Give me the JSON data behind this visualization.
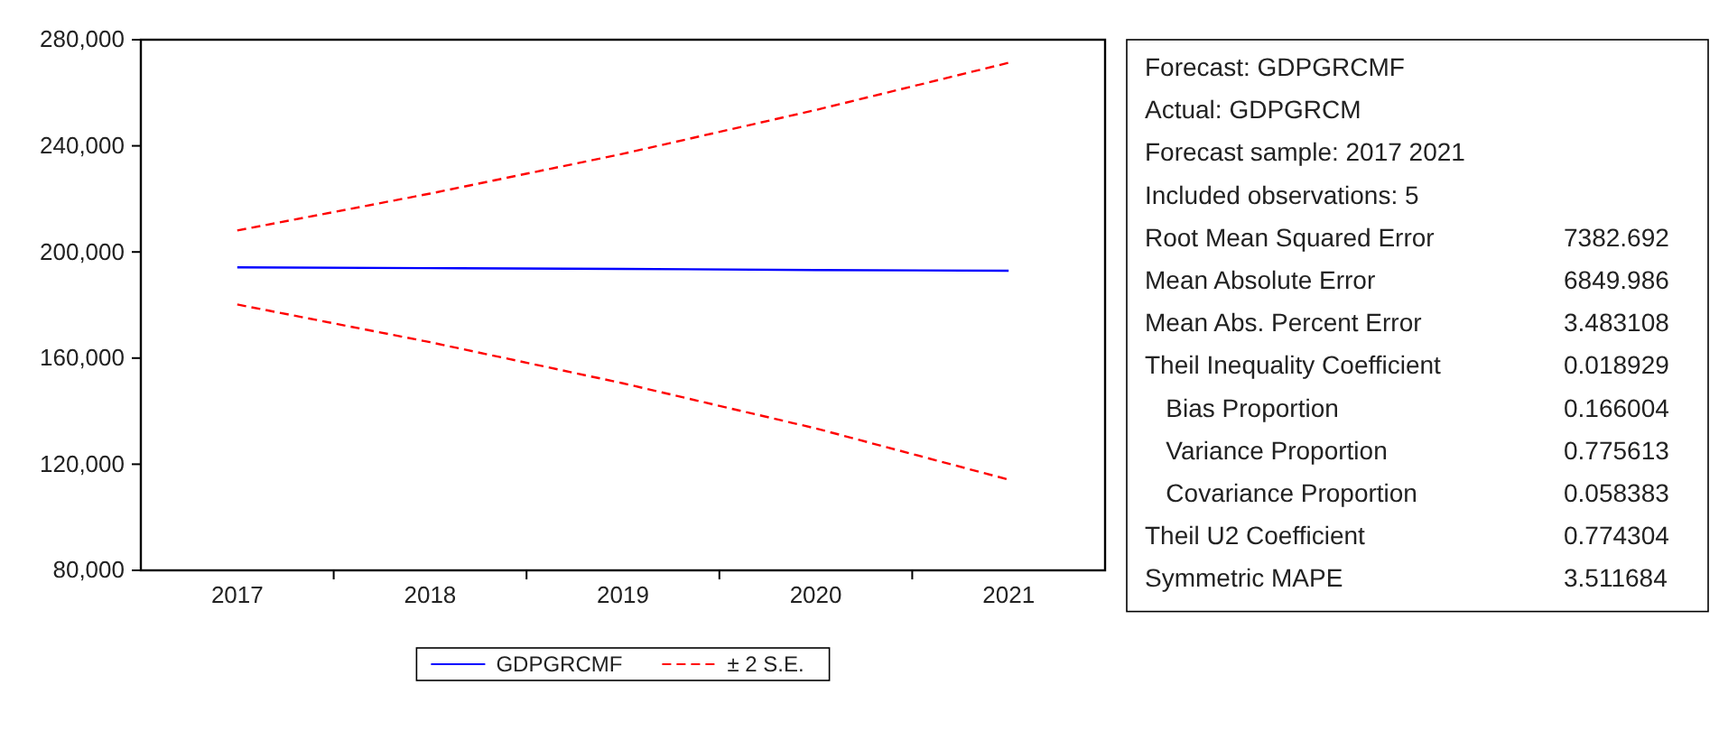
{
  "chart_data": {
    "type": "line",
    "categories": [
      "2017",
      "2018",
      "2019",
      "2020",
      "2021"
    ],
    "series": [
      {
        "name": "GDPGRCMF",
        "color": "#0000ff",
        "line_style": "solid",
        "values": [
          194200,
          193900,
          193600,
          193200,
          192900
        ]
      },
      {
        "name": "± 2 S.E.",
        "color": "#ff0000",
        "line_style": "dashed",
        "values": [
          208100,
          222000,
          237000,
          253500,
          271300
        ]
      },
      {
        "color": "#ff0000",
        "line_style": "dashed",
        "values": [
          180200,
          166000,
          150500,
          133500,
          114200
        ]
      }
    ],
    "ylim": [
      80000,
      280000
    ],
    "yticks": [
      {
        "value": 80000,
        "label": "80,000"
      },
      {
        "value": 120000,
        "label": "120,000"
      },
      {
        "value": 160000,
        "label": "160,000"
      },
      {
        "value": 200000,
        "label": "200,000"
      },
      {
        "value": 240000,
        "label": "240,000"
      },
      {
        "value": 280000,
        "label": "280,000"
      }
    ],
    "grid": false,
    "legend": "bottom",
    "marker": "none",
    "annotations": [
      "Forecast: GDPGRCMF",
      "Actual: GDPGRCM",
      "Forecast sample: 2017 2021",
      "Included observations: 5",
      "Root Mean Squared Error",
      "7382.692",
      "Mean Absolute Error",
      "6849.986",
      "Mean Abs. Percent Error",
      "3.483108",
      "Theil Inequality Coefficient",
      "0.018929",
      "   Bias Proportion",
      "0.166004",
      "   Variance Proportion",
      "0.775613",
      "   Covariance Proportion",
      "0.058383",
      "Theil U2 Coefficient",
      "0.774304",
      "Symmetric MAPE",
      "3.511684"
    ]
  }
}
